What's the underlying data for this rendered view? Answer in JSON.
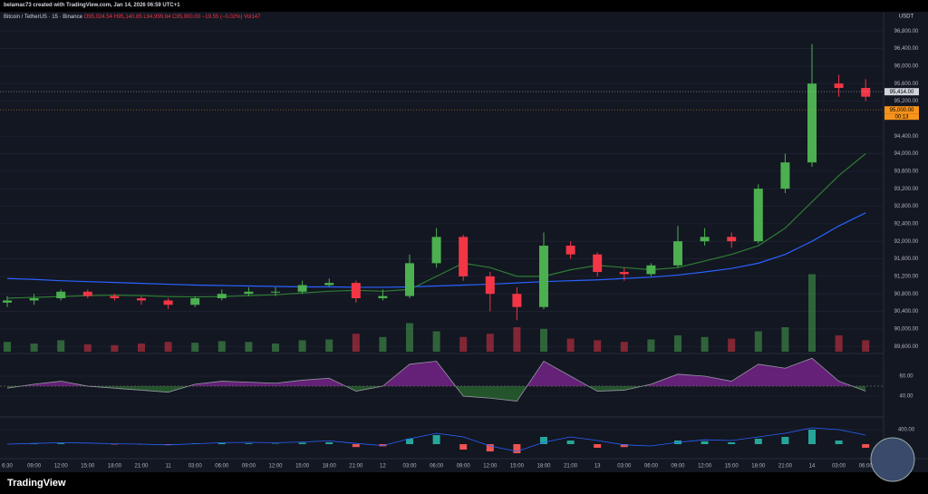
{
  "header": {
    "attribution": "belamac73 created with TradingView.com, Jan 14, 2026 06:59 UTC+1",
    "symbol": "Bitcoin / TetherUS · 15 · Binance",
    "ohlc": [
      "O95,024.54",
      "H95,140.85",
      "L94,999.84",
      "C95,000.00",
      "−19.55 (−0.02%)",
      "Vol147"
    ],
    "currency": "USDT",
    "brand": "TradingView"
  },
  "chart_data": {
    "type": "candlestick",
    "categories": [
      "6:30",
      "09:00",
      "12:00",
      "15:00",
      "18:00",
      "21:00",
      "11",
      "03:00",
      "06:00",
      "09:00",
      "12:00",
      "15:00",
      "18:00",
      "21:00",
      "12",
      "03:00",
      "06:00",
      "09:00",
      "12:00",
      "15:00",
      "18:00",
      "21:00",
      "13",
      "03:00",
      "06:00",
      "09:00",
      "12:00",
      "15:00",
      "18:00",
      "21:00",
      "14",
      "03:00",
      "06:00"
    ],
    "open": [
      90600,
      90650,
      90700,
      90850,
      90750,
      90700,
      90650,
      90550,
      90700,
      90800,
      90850,
      90850,
      91000,
      91050,
      90700,
      90750,
      91500,
      92100,
      91200,
      90800,
      90500,
      91900,
      91700,
      91300,
      91250,
      91450,
      92000,
      92100,
      92000,
      93200,
      93800,
      95600,
      95500
    ],
    "high": [
      90750,
      90800,
      90900,
      90900,
      90800,
      90750,
      90700,
      90750,
      90900,
      90950,
      90950,
      91100,
      91150,
      91100,
      90900,
      91700,
      92300,
      92150,
      91300,
      90950,
      92200,
      92000,
      91750,
      91400,
      91500,
      92350,
      92300,
      92200,
      93300,
      94000,
      96500,
      95800,
      95700
    ],
    "low": [
      90500,
      90550,
      90650,
      90700,
      90650,
      90550,
      90450,
      90500,
      90650,
      90750,
      90750,
      90800,
      90950,
      90600,
      90650,
      90700,
      91400,
      91100,
      90400,
      90200,
      90450,
      91600,
      91200,
      91100,
      91200,
      91400,
      91900,
      91850,
      91950,
      93100,
      93700,
      95300,
      95200
    ],
    "close": [
      90650,
      90700,
      90850,
      90750,
      90700,
      90650,
      90550,
      90700,
      90800,
      90850,
      90850,
      91000,
      91050,
      90700,
      90750,
      91500,
      92100,
      91200,
      90800,
      90500,
      91900,
      91700,
      91300,
      91250,
      91450,
      92000,
      92100,
      92000,
      93200,
      93800,
      95600,
      95500,
      95300
    ],
    "up_color": "#4caf50",
    "down_color": "#f23645",
    "lines": [
      {
        "color": "#2962ff",
        "values": [
          91150,
          91130,
          91100,
          91080,
          91060,
          91040,
          91020,
          91000,
          90990,
          90980,
          90970,
          90960,
          90960,
          90950,
          90950,
          90960,
          90980,
          91000,
          91020,
          91050,
          91080,
          91100,
          91120,
          91150,
          91180,
          91230,
          91300,
          91380,
          91500,
          91700,
          92000,
          92350,
          92650
        ]
      },
      {
        "color": "#2e7d32",
        "values": [
          90700,
          90720,
          90740,
          90760,
          90770,
          90760,
          90740,
          90730,
          90740,
          90760,
          90780,
          90820,
          90860,
          90880,
          90860,
          90900,
          91200,
          91500,
          91400,
          91200,
          91200,
          91350,
          91450,
          91400,
          91350,
          91400,
          91550,
          91700,
          91900,
          92300,
          92900,
          93500,
          94000
        ]
      }
    ],
    "ylim": [
      89480,
      96990
    ],
    "yticks": [
      {
        "value": 96800,
        "label": "96,800.00"
      },
      {
        "value": 96400,
        "label": "96,400.00"
      },
      {
        "value": 96000,
        "label": "96,000.00"
      },
      {
        "value": 95600,
        "label": "95,600.00"
      },
      {
        "value": 95200,
        "label": "95,200.00"
      },
      {
        "value": 94400,
        "label": "94,400.00"
      },
      {
        "value": 94000,
        "label": "94,000.00"
      },
      {
        "value": 93600,
        "label": "93,600.00"
      },
      {
        "value": 93200,
        "label": "93,200.00"
      },
      {
        "value": 92800,
        "label": "92,800.00"
      },
      {
        "value": 92400,
        "label": "92,400.00"
      },
      {
        "value": 92000,
        "label": "92,000.00"
      },
      {
        "value": 91600,
        "label": "91,600.00"
      },
      {
        "value": 91200,
        "label": "91,200.00"
      },
      {
        "value": 90800,
        "label": "90,800.00"
      },
      {
        "value": 90400,
        "label": "90,400.00"
      },
      {
        "value": 90000,
        "label": "90,000.00"
      },
      {
        "value": 89600,
        "label": "89,600.00"
      }
    ],
    "grid": true,
    "price_tags": [
      {
        "value": 95414,
        "label": "95,414.00",
        "color": "#d1d4dc"
      },
      {
        "value": 95000,
        "label": "95,000.00",
        "color": "#f7931a"
      }
    ],
    "countdown": "00:13",
    "volume": {
      "values": [
        12,
        10,
        14,
        9,
        8,
        10,
        12,
        11,
        13,
        12,
        10,
        14,
        15,
        22,
        18,
        35,
        25,
        18,
        22,
        30,
        28,
        16,
        14,
        12,
        15,
        20,
        18,
        16,
        25,
        30,
        95,
        20,
        14
      ],
      "ylim": [
        0,
        100
      ]
    },
    "rsi": {
      "values": [
        48,
        52,
        55,
        50,
        48,
        46,
        44,
        52,
        55,
        54,
        53,
        56,
        58,
        45,
        50,
        72,
        75,
        40,
        38,
        35,
        75,
        60,
        45,
        46,
        52,
        62,
        60,
        55,
        72,
        68,
        78,
        55,
        45
      ],
      "ylim": [
        21,
        80
      ],
      "midline": 50,
      "up_color": "#9c27b0",
      "down_color": "#2e7d32",
      "yticks": [
        {
          "value": 60,
          "label": "60.00"
        },
        {
          "value": 40,
          "label": "40.00"
        }
      ]
    },
    "macd": {
      "histogram": [
        0,
        10,
        20,
        0,
        -10,
        -10,
        -20,
        20,
        30,
        20,
        10,
        40,
        50,
        -80,
        -60,
        150,
        250,
        -150,
        -200,
        -250,
        200,
        100,
        -100,
        -80,
        0,
        100,
        80,
        50,
        150,
        200,
        400,
        100,
        -100
      ],
      "line": [
        0,
        20,
        40,
        30,
        10,
        0,
        -20,
        10,
        40,
        50,
        40,
        60,
        90,
        20,
        -40,
        150,
        300,
        200,
        -50,
        -200,
        50,
        200,
        100,
        -20,
        -50,
        50,
        120,
        100,
        200,
        300,
        450,
        400,
        250
      ],
      "ylim": [
        -375,
        700
      ],
      "yticks": [
        {
          "value": 400,
          "label": "400.00"
        }
      ],
      "line_color": "#2962ff",
      "up_color": "#26a69a",
      "down_color": "#ef5350"
    }
  }
}
